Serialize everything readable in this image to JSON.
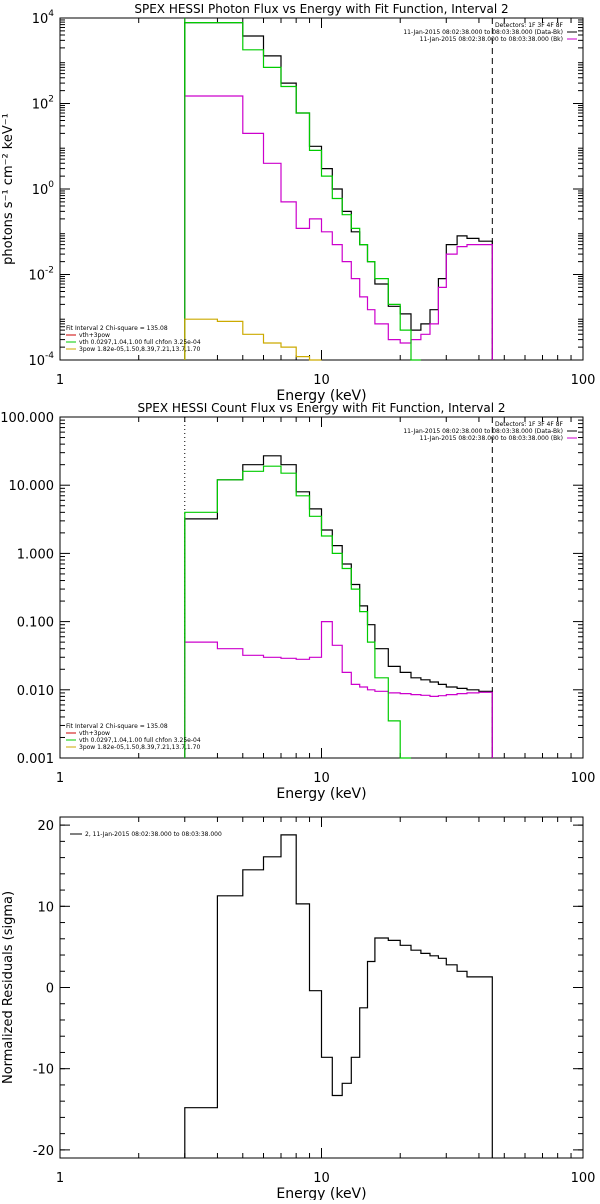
{
  "chart_data": [
    {
      "type": "line",
      "title": "SPEX HESSI Photon Flux vs Energy with Fit Function, Interval 2",
      "xlabel": "Energy (keV)",
      "ylabel": "photons s⁻¹ cm⁻² keV⁻¹",
      "xscale": "log",
      "yscale": "log",
      "xlim": [
        1,
        100
      ],
      "ylim": [
        0.0001,
        10000
      ],
      "x_ticks": [
        {
          "v": 1,
          "t": "1"
        },
        {
          "v": 10,
          "t": "10"
        },
        {
          "v": 100,
          "t": "100"
        }
      ],
      "y_ticks": [
        {
          "v": 0.0001,
          "b": "10",
          "e": "-4"
        },
        {
          "v": 0.01,
          "b": "10",
          "e": "-2"
        },
        {
          "v": 1,
          "b": "10",
          "e": "0"
        },
        {
          "v": 100,
          "b": "10",
          "e": "2"
        },
        {
          "v": 10000,
          "b": "10",
          "e": "4"
        }
      ],
      "legend_topright": [
        "Detectors: 1F 3F 4F 8F",
        "11-Jan-2015 08:02:38.000 to 08:03:38.000 (Data-Bk)",
        "11-Jan-2015 08:02:38.000 to 08:03:38.000 (Bk)"
      ],
      "legend_bottomleft": [
        "Fit Interval 2   Chi-square = 135.08",
        "vth+3pow",
        "vth 0.0297,1.04,1.00  full chfon 3.25e-04",
        "3pow 1.82e-05,1.50,8.39,7.21,13.7,1.70"
      ],
      "vlines": [
        {
          "x": 3.0,
          "style": "solid",
          "color": "#00cc00"
        },
        {
          "x": 45.0,
          "style": "dashed",
          "color": "#000000"
        }
      ],
      "bin_edges": [
        3.0,
        4.0,
        5.0,
        6.0,
        7.0,
        8.0,
        9.0,
        10.0,
        11.0,
        12.0,
        13.0,
        14.0,
        15.0,
        16.0,
        18.0,
        20.0,
        22.0,
        24.0,
        26.0,
        28.0,
        30.0,
        33.0,
        36.0,
        40.0,
        45.0
      ],
      "series": [
        {
          "name": "Data-Bk",
          "color": "#000000",
          "values": [
            7800,
            7800,
            3800,
            1300,
            300,
            60,
            10,
            3,
            1,
            0.3,
            0.1,
            0.05,
            0.02,
            0.006,
            0.0018,
            0.0012,
            0.0005,
            0.0007,
            0.0015,
            0.008,
            0.05,
            0.08,
            0.07,
            0.06
          ]
        },
        {
          "name": "Bk",
          "color": "#cc00cc",
          "values": [
            150,
            150,
            20,
            4,
            0.5,
            0.12,
            0.2,
            0.1,
            0.05,
            0.02,
            0.008,
            0.003,
            0.0015,
            0.0007,
            0.0003,
            0.00025,
            0.0003,
            0.0004,
            0.0007,
            0.005,
            0.03,
            0.045,
            0.05,
            0.05
          ]
        },
        {
          "name": "vth+3pow",
          "color": "#00cc00",
          "values": [
            7800,
            7800,
            1800,
            700,
            250,
            60,
            8,
            2,
            0.6,
            0.25,
            0.12,
            0.05,
            0.02,
            0.008,
            0.002,
            0.0005,
            9e-05
          ]
        },
        {
          "name": "3pow",
          "color": "#ccaa00",
          "values": [
            0.0009,
            0.0008,
            0.0004,
            0.00025,
            0.0002,
            0.00012,
            9e-05
          ]
        }
      ]
    },
    {
      "type": "line",
      "title": "SPEX HESSI Count Flux vs Energy with Fit Function, Interval 2",
      "xlabel": "Energy (keV)",
      "ylabel": "",
      "xscale": "log",
      "yscale": "log",
      "xlim": [
        1,
        100
      ],
      "ylim": [
        0.001,
        100
      ],
      "x_ticks": [
        {
          "v": 1,
          "t": "1"
        },
        {
          "v": 10,
          "t": "10"
        },
        {
          "v": 100,
          "t": "100"
        }
      ],
      "y_ticks": [
        {
          "v": 100,
          "t": "100.000"
        },
        {
          "v": 10,
          "t": "10.000"
        },
        {
          "v": 1,
          "t": "1.000"
        },
        {
          "v": 0.1,
          "t": "0.100"
        },
        {
          "v": 0.01,
          "t": "0.010"
        },
        {
          "v": 0.001,
          "t": "0.001"
        }
      ],
      "legend_topright": [
        "Detectors: 1F 3F 4F 8F",
        "11-Jan-2015 08:02:38.000 to 08:03:38.000 (Data-Bk)",
        "11-Jan-2015 08:02:38.000 to 08:03:38.000 (Bk)"
      ],
      "legend_bottomleft": [
        "Fit Interval 2   Chi-square = 135.08",
        "vth+3pow",
        "vth 0.0297,1.04,1.00  full chfon 3.25e-04",
        "3pow 1.82e-05,1.50,8.39,7.21,13.7,1.70"
      ],
      "vlines": [
        {
          "x": 3.0,
          "style": "dotted",
          "color": "#000000"
        },
        {
          "x": 45.0,
          "style": "dashed",
          "color": "#000000"
        }
      ],
      "bin_edges": [
        3.0,
        4.0,
        5.0,
        6.0,
        7.0,
        8.0,
        9.0,
        10.0,
        11.0,
        12.0,
        13.0,
        14.0,
        15.0,
        16.0,
        18.0,
        20.0,
        22.0,
        24.0,
        26.0,
        28.0,
        30.0,
        33.0,
        36.0,
        40.0,
        45.0
      ],
      "series": [
        {
          "name": "Data-Bk",
          "color": "#000000",
          "values": [
            3.2,
            12,
            20,
            27,
            20,
            8,
            4.5,
            2.2,
            1.3,
            0.7,
            0.35,
            0.17,
            0.09,
            0.04,
            0.022,
            0.018,
            0.015,
            0.014,
            0.013,
            0.012,
            0.011,
            0.0105,
            0.01,
            0.0095
          ]
        },
        {
          "name": "Bk",
          "color": "#cc00cc",
          "values": [
            0.05,
            0.04,
            0.032,
            0.03,
            0.029,
            0.028,
            0.03,
            0.1,
            0.045,
            0.018,
            0.012,
            0.011,
            0.01,
            0.0095,
            0.009,
            0.0088,
            0.0085,
            0.0083,
            0.008,
            0.0082,
            0.0085,
            0.0088,
            0.009,
            0.0092
          ]
        },
        {
          "name": "vth+3pow",
          "color": "#00cc00",
          "values": [
            4,
            12,
            16,
            19,
            15,
            7,
            3.5,
            1.8,
            1.0,
            0.6,
            0.3,
            0.14,
            0.05,
            0.015,
            0.0035,
            0.0008
          ]
        }
      ]
    },
    {
      "type": "line",
      "title": "",
      "xlabel": "Energy (keV)",
      "ylabel": "Normalized Residuals (sigma)",
      "xscale": "log",
      "yscale": "linear",
      "xlim": [
        1,
        100
      ],
      "ylim": [
        -21,
        21
      ],
      "x_ticks": [
        {
          "v": 1,
          "t": "1"
        },
        {
          "v": 10,
          "t": "10"
        },
        {
          "v": 100,
          "t": "100"
        }
      ],
      "y_ticks": [
        {
          "v": 20,
          "t": "20"
        },
        {
          "v": 10,
          "t": "10"
        },
        {
          "v": 0,
          "t": "0"
        },
        {
          "v": -10,
          "t": "-10"
        },
        {
          "v": -20,
          "t": "-20"
        }
      ],
      "legend_topleft": [
        "2, 11-Jan-2015 08:02:38.000 to 08:03:38.000"
      ],
      "bin_edges": [
        3.0,
        4.0,
        5.0,
        6.0,
        7.0,
        8.0,
        9.0,
        10.0,
        11.0,
        12.0,
        13.0,
        14.0,
        15.0,
        16.0,
        18.0,
        20.0,
        22.0,
        24.0,
        26.0,
        28.0,
        30.0,
        33.0,
        36.0,
        40.0,
        45.0
      ],
      "series": [
        {
          "name": "residuals",
          "color": "#000000",
          "values": [
            -14.8,
            11.3,
            14.5,
            16.1,
            18.8,
            10.3,
            -0.4,
            -8.6,
            -13.3,
            -11.8,
            -8.6,
            -2.5,
            3.2,
            6.1,
            5.8,
            5.2,
            4.6,
            4.2,
            3.9,
            3.6,
            2.8,
            2.0,
            1.3,
            1.3
          ]
        }
      ]
    }
  ]
}
